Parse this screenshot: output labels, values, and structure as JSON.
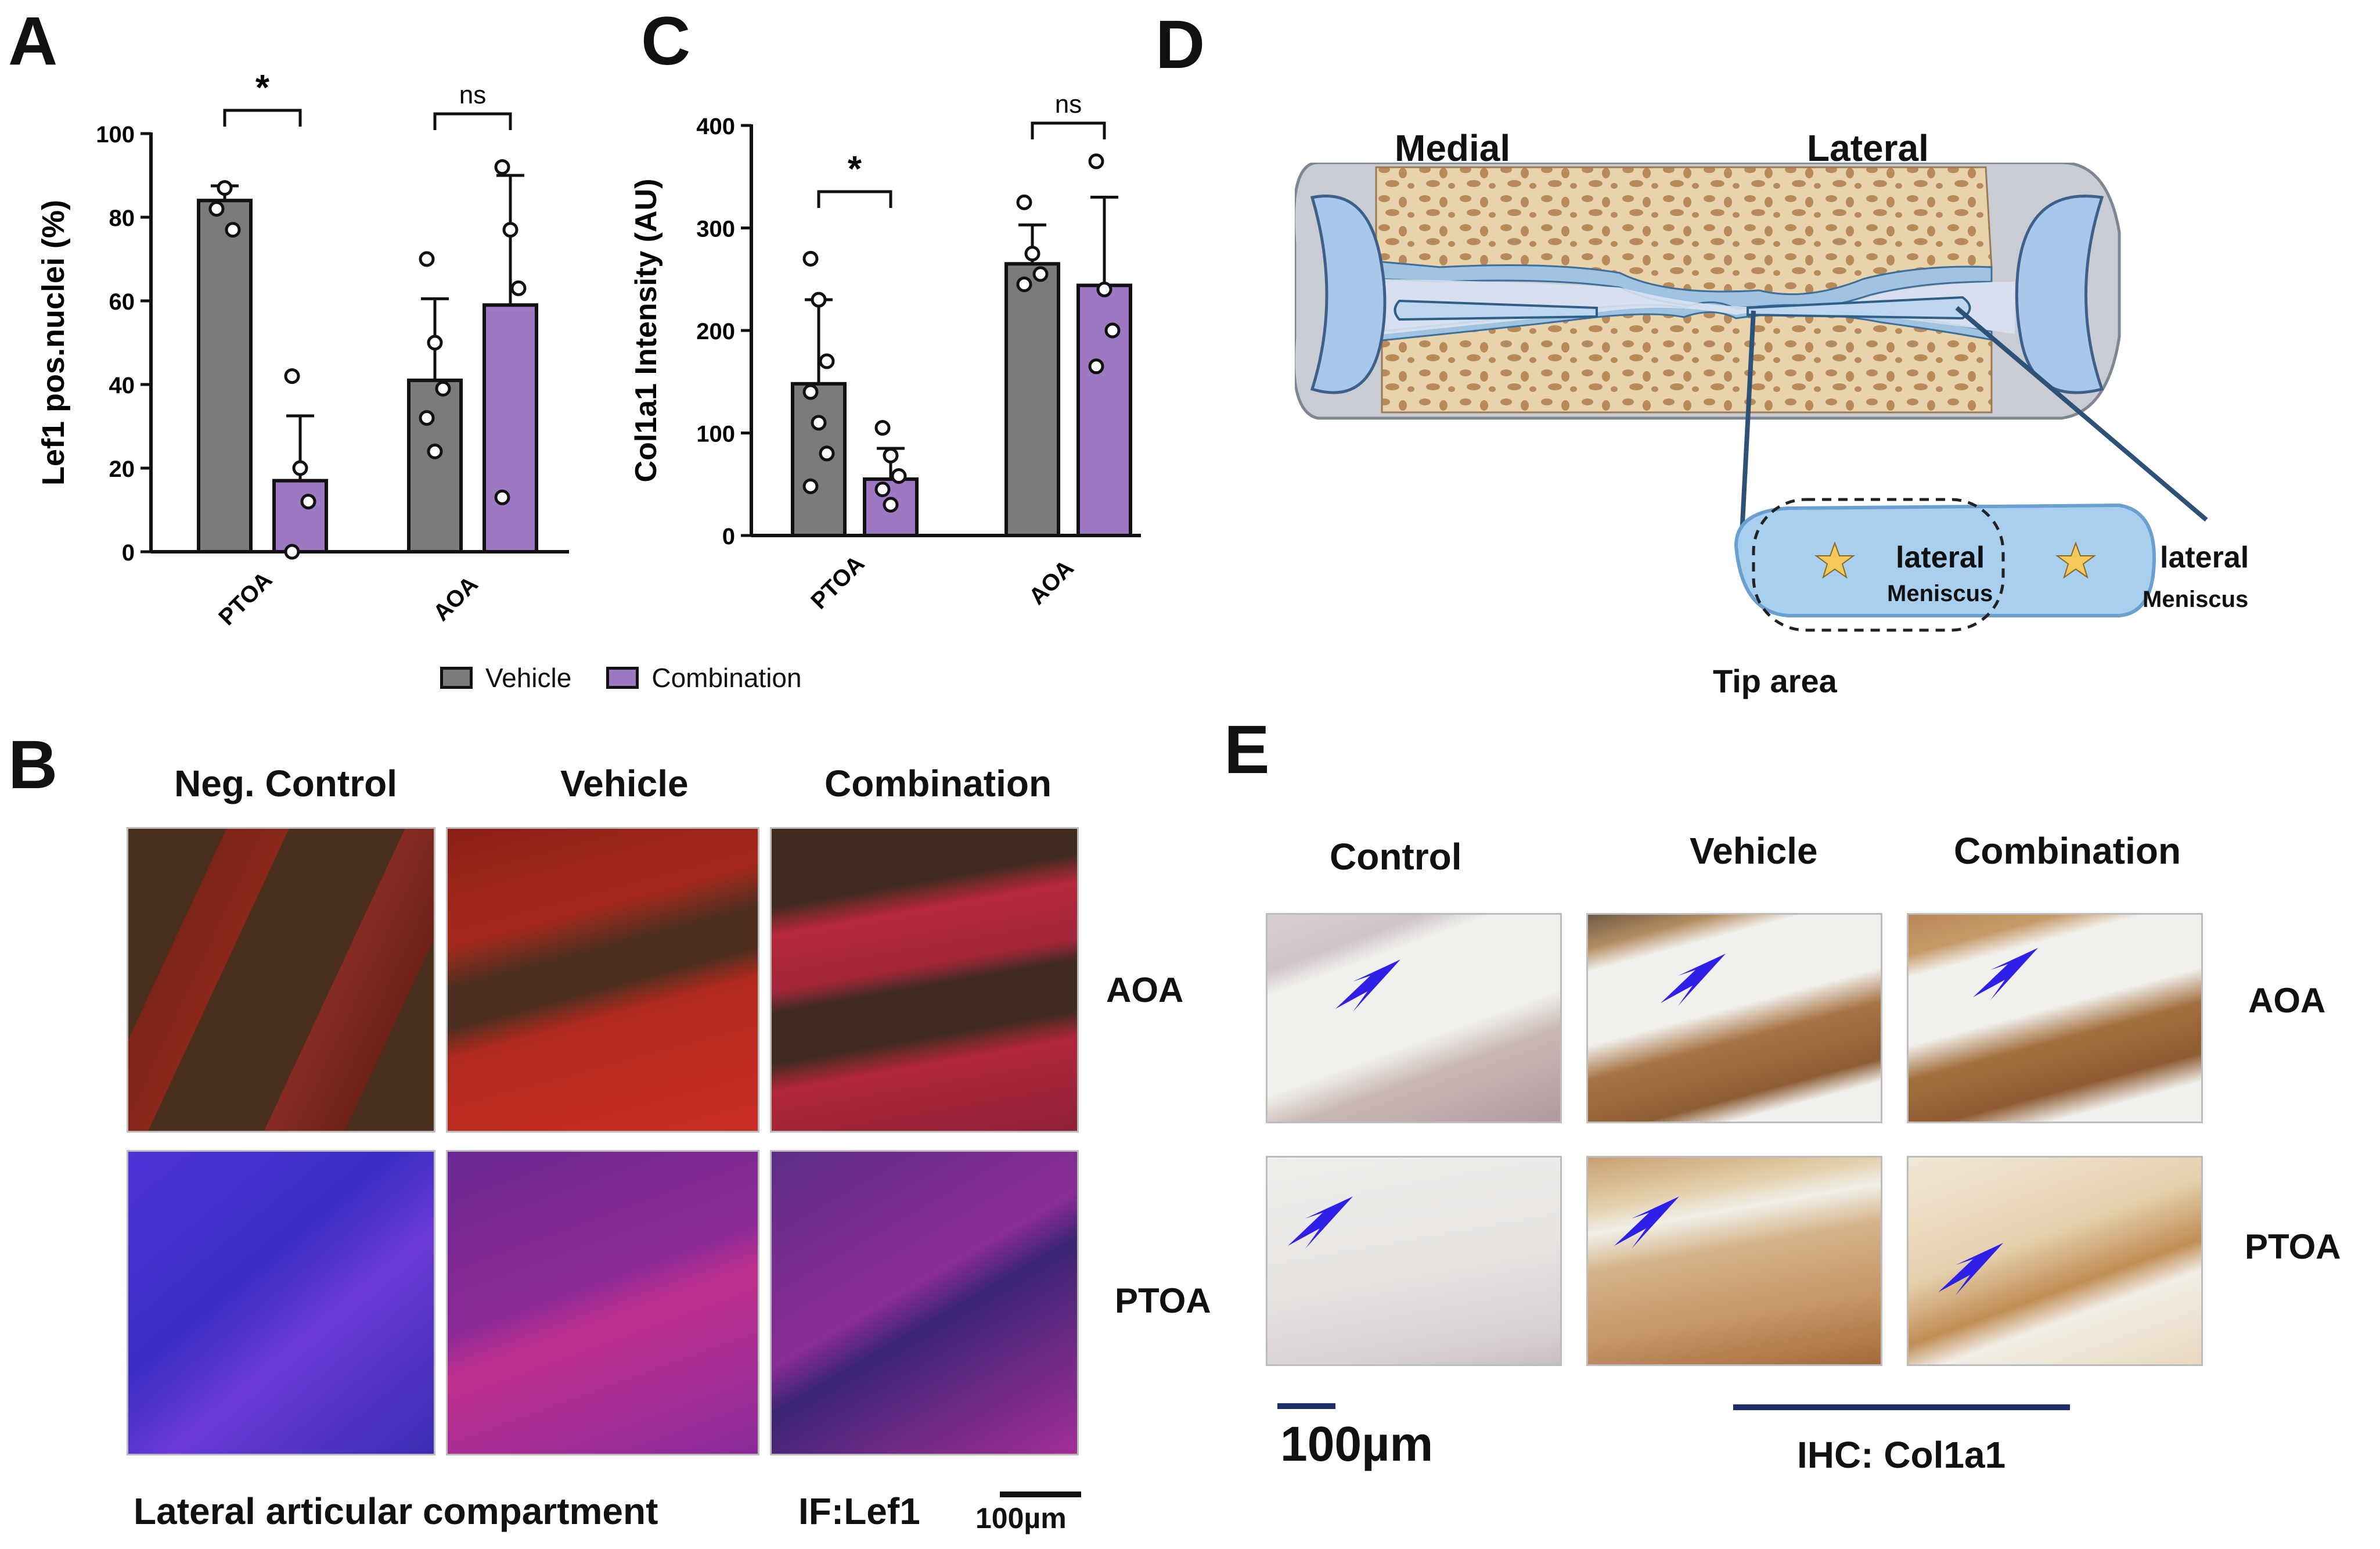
{
  "panels": {
    "A": "A",
    "B": "B",
    "C": "C",
    "D": "D",
    "E": "E"
  },
  "colors": {
    "vehicle": "#7b7b7b",
    "combination": "#9c79c2",
    "arrow": "#2f20e8",
    "tip_line": "#1f3a5a"
  },
  "chart_data": [
    {
      "panel": "A",
      "type": "bar",
      "ylabel": "Lef1 pos.nuclei (%)",
      "xlabel": "",
      "ylim": [
        0,
        100
      ],
      "yticks": [
        "0",
        "20",
        "40",
        "60",
        "80",
        "100"
      ],
      "categories": [
        "PTOA",
        "AOA"
      ],
      "series": [
        {
          "name": "Vehicle",
          "values": [
            84,
            41
          ],
          "errors": [
            3.5,
            19.5
          ],
          "points": [
            [
              82,
              87,
              77
            ],
            [
              70,
              50,
              39,
              32,
              24
            ]
          ]
        },
        {
          "name": "Combination",
          "values": [
            17,
            59
          ],
          "errors": [
            15.5,
            31
          ],
          "points": [
            [
              42,
              20,
              12,
              0
            ],
            [
              92,
              77,
              63,
              13
            ]
          ]
        }
      ],
      "annotations": [
        {
          "group": "PTOA",
          "text": "*"
        },
        {
          "group": "AOA",
          "text": "ns"
        }
      ]
    },
    {
      "panel": "C",
      "type": "bar",
      "ylabel": "Col1a1 Intensity (AU)",
      "xlabel": "",
      "ylim": [
        0,
        400
      ],
      "yticks": [
        "0",
        "100",
        "200",
        "300",
        "400"
      ],
      "categories": [
        "PTOA",
        "AOA"
      ],
      "series": [
        {
          "name": "Vehicle",
          "values": [
            148,
            265
          ],
          "errors": [
            82,
            38
          ],
          "points": [
            [
              270,
              230,
              170,
              140,
              110,
              80,
              48
            ],
            [
              325,
              275,
              255,
              245
            ]
          ]
        },
        {
          "name": "Combination",
          "values": [
            55,
            244
          ],
          "errors": [
            30,
            86
          ],
          "points": [
            [
              105,
              78,
              58,
              45,
              30
            ],
            [
              365,
              240,
              200,
              165
            ]
          ]
        }
      ],
      "annotations": [
        {
          "group": "PTOA",
          "text": "*"
        },
        {
          "group": "AOA",
          "text": "ns"
        }
      ]
    }
  ],
  "legend": {
    "vehicle": "Vehicle",
    "combination": "Combination"
  },
  "panel_b": {
    "col_headers": [
      "Neg. Control",
      "Vehicle",
      "Combination"
    ],
    "row_labels": [
      "AOA",
      "PTOA"
    ],
    "caption": "Lateral articular compartment",
    "stain": "IF:Lef1",
    "scale_bar": "100µm"
  },
  "panel_d": {
    "medial": "Medial",
    "lateral": "Lateral",
    "meniscus_title": "lateral",
    "meniscus_sub": "Meniscus",
    "tip_area": "Tip area"
  },
  "panel_e": {
    "col_headers": [
      "Control",
      "Vehicle",
      "Combination"
    ],
    "row_labels": [
      "AOA",
      "PTOA"
    ],
    "scale_bar": "100µm",
    "stain": "IHC: Col1a1"
  }
}
